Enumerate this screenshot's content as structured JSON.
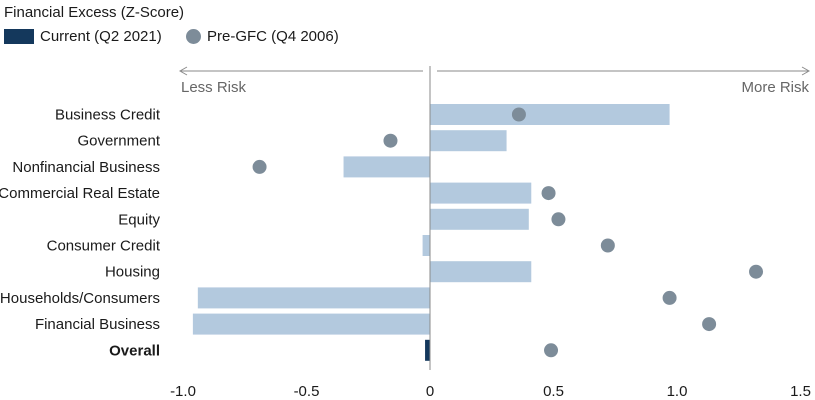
{
  "legend": {
    "title": "Financial Excess (Z-Score)",
    "current_label": "Current (Q2 2021)",
    "pregfc_label": "Pre-GFC (Q4 2006)"
  },
  "colors": {
    "current_bar": "#b3c9de",
    "current_highlight": "#14385c",
    "pregfc_dot": "#7d8c99",
    "axis": "#8a8a8a",
    "text": "#1a1a1a"
  },
  "annotations": {
    "less_risk": "Less Risk",
    "more_risk": "More Risk"
  },
  "chart_data": {
    "type": "bar",
    "orientation": "horizontal",
    "categories": [
      "Business Credit",
      "Government",
      "Nonfinancial Business",
      "Commercial Real Estate",
      "Equity",
      "Consumer Credit",
      "Housing",
      "Households/Consumers",
      "Financial Business",
      "Overall"
    ],
    "highlight_category": "Overall",
    "series": [
      {
        "name": "Current (Q2 2021)",
        "kind": "bar",
        "values": [
          0.97,
          0.31,
          -0.35,
          0.41,
          0.4,
          -0.03,
          0.41,
          -0.94,
          -0.96,
          -0.02
        ]
      },
      {
        "name": "Pre-GFC (Q4 2006)",
        "kind": "dot",
        "values": [
          0.36,
          -0.16,
          -0.69,
          0.48,
          0.52,
          0.72,
          1.32,
          0.97,
          1.13,
          0.49
        ]
      }
    ],
    "x_ticks": [
      -1.0,
      -0.5,
      0,
      1.0,
      1.5
    ],
    "x_tick_labels": [
      "-1.0",
      "-0.5",
      "0",
      "1.0",
      "1.5"
    ],
    "x_extra_tick": {
      "value": 0.5,
      "label": "0.5"
    },
    "xlim": [
      -1.0,
      1.5
    ],
    "grid": false
  }
}
